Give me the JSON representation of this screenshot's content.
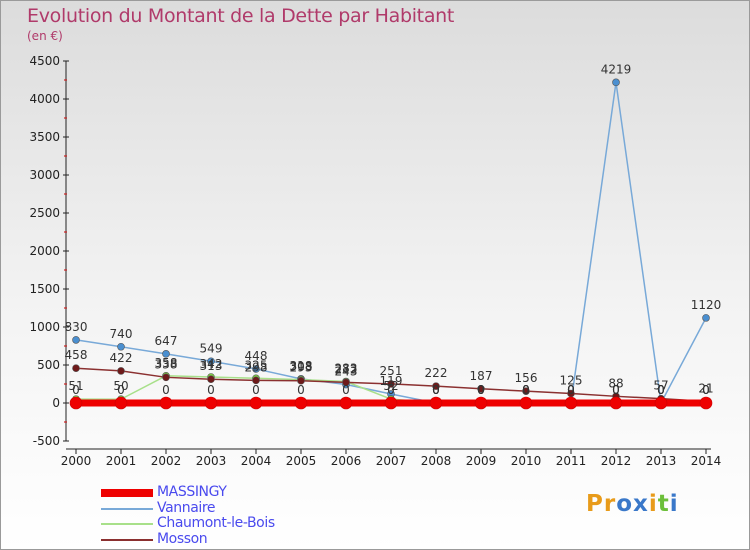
{
  "title": "Evolution du Montant de la Dette par Habitant",
  "subtitle": "(en €)",
  "logo": {
    "text": "Proxiti",
    "letters": [
      "P",
      "r",
      "o",
      "x",
      "i",
      "t",
      "i"
    ],
    "colors": [
      "#e89b1a",
      "#e89b1a",
      "#3a78c9",
      "#3a78c9",
      "#e89b1a",
      "#6cbf3a",
      "#3a78c9"
    ]
  },
  "chart_data": {
    "type": "line",
    "title": "Evolution du Montant de la Dette par Habitant",
    "ylabel": "(en €)",
    "xlabel": "",
    "x": [
      2000,
      2001,
      2002,
      2003,
      2004,
      2005,
      2006,
      2007,
      2008,
      2009,
      2010,
      2011,
      2012,
      2013,
      2014
    ],
    "ylim": [
      -500,
      4500
    ],
    "yticks": [
      -500,
      0,
      500,
      1000,
      1500,
      2000,
      2500,
      3000,
      3500,
      4000,
      4500
    ],
    "grid": false,
    "legend_position": "bottom-left",
    "series": [
      {
        "name": "MASSINGY",
        "color": "#ee0000",
        "width": 7,
        "marker_fill": "#ee0000",
        "marker_r": 6,
        "values": [
          0,
          0,
          0,
          0,
          0,
          0,
          0,
          0,
          0,
          0,
          0,
          0,
          0,
          0,
          0
        ],
        "labels": [
          "0",
          "0",
          "0",
          "0",
          "0",
          "0",
          "0",
          "0",
          "0",
          "0",
          "0",
          "0",
          "0",
          "0",
          "0"
        ]
      },
      {
        "name": "Vannaire",
        "color": "#78a9d8",
        "width": 1.5,
        "marker_fill": "#4a8fd0",
        "marker_r": 3.5,
        "values": [
          830,
          740,
          647,
          549,
          448,
          318,
          243,
          119,
          0,
          0,
          0,
          0,
          4219,
          0,
          1120
        ],
        "labels": [
          "830",
          "740",
          "647",
          "549",
          "448",
          "318",
          "243",
          "119",
          "0",
          "0",
          "0",
          "0",
          "4219",
          "0",
          "1120"
        ]
      },
      {
        "name": "Chaumont-le-Bois",
        "color": "#a8e08a",
        "width": 1.5,
        "marker_fill": "#7fd040",
        "marker_r": 3.5,
        "values": [
          51,
          50,
          358,
          342,
          325,
          308,
          283,
          52,
          0,
          0,
          0,
          0,
          0,
          0,
          0
        ],
        "labels": [
          "51",
          "50",
          "358",
          "342",
          "325",
          "308",
          "283",
          "52",
          "0",
          "0",
          "0",
          "0",
          "0",
          "0",
          "0"
        ]
      },
      {
        "name": "Mosson",
        "color": "#8b3030",
        "width": 1.5,
        "marker_fill": "#6e1a1a",
        "marker_r": 3.5,
        "values": [
          458,
          422,
          338,
          313,
          298,
          293,
          272,
          251,
          222,
          187,
          156,
          125,
          88,
          57,
          21
        ],
        "labels": [
          "458",
          "422",
          "338",
          "313",
          "298",
          "293",
          "272",
          "251",
          "222",
          "187",
          "156",
          "125",
          "88",
          "57",
          "21"
        ]
      }
    ]
  }
}
